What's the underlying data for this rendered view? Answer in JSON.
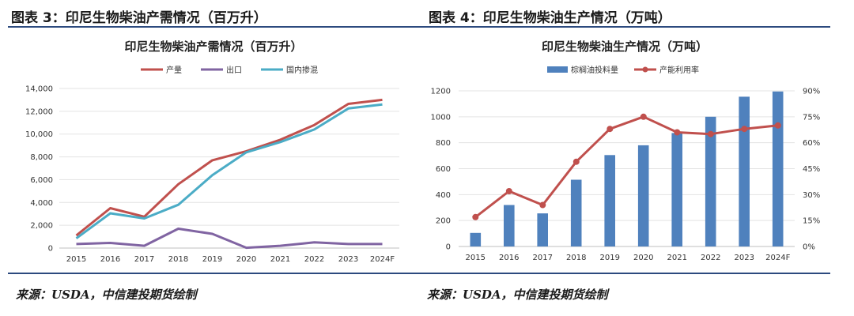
{
  "left": {
    "header": "图表 3：印尼生物柴油产需情况（百万升）",
    "source": "来源：USDA，中信建投期货绘制"
  },
  "right": {
    "header": "图表 4：印尼生物柴油生产情况（万吨）",
    "source": "来源：USDA，中信建投期货绘制"
  },
  "colors": {
    "rule": "#2c4a7e",
    "production": "#c0504d",
    "export": "#8064a2",
    "domestic": "#4bacc6",
    "bar": "#4f81bd",
    "rate": "#c0504d"
  },
  "chart_data": [
    {
      "type": "line",
      "title": "印尼生物柴油产需情况（百万升）",
      "categories": [
        "2015",
        "2016",
        "2017",
        "2018",
        "2019",
        "2020",
        "2021",
        "2022",
        "2023",
        "2024F"
      ],
      "ylim": [
        0,
        14000
      ],
      "yticks": [
        "0",
        "2,000",
        "4,000",
        "6,000",
        "8,000",
        "10,000",
        "12,000",
        "14,000"
      ],
      "grid": true,
      "legend": "top",
      "series": [
        {
          "name": "产量",
          "color": "#c0504d",
          "values": [
            1100,
            3500,
            2750,
            5600,
            7700,
            8500,
            9500,
            10800,
            12650,
            13000
          ]
        },
        {
          "name": "出口",
          "color": "#8064a2",
          "values": [
            350,
            450,
            200,
            1700,
            1250,
            30,
            200,
            500,
            350,
            350
          ]
        },
        {
          "name": "国内掺混",
          "color": "#4bacc6",
          "values": [
            850,
            3050,
            2600,
            3800,
            6400,
            8400,
            9300,
            10400,
            12250,
            12600
          ]
        }
      ]
    },
    {
      "type": "bar+line",
      "title": "印尼生物柴油生产情况（万吨）",
      "categories": [
        "2015",
        "2016",
        "2017",
        "2018",
        "2019",
        "2020",
        "2021",
        "2022",
        "2023",
        "2024F"
      ],
      "ylim": [
        0,
        1200
      ],
      "yticks": [
        "0",
        "200",
        "400",
        "600",
        "800",
        "1000",
        "1200"
      ],
      "y2lim": [
        0,
        90
      ],
      "y2ticks": [
        "0%",
        "15%",
        "30%",
        "45%",
        "60%",
        "75%",
        "90%"
      ],
      "grid": true,
      "legend": "top",
      "series": [
        {
          "name": "棕榈油投料量",
          "type": "bar",
          "axis": "left",
          "color": "#4f81bd",
          "values": [
            105,
            320,
            255,
            515,
            705,
            780,
            875,
            1000,
            1155,
            1195
          ]
        },
        {
          "name": "产能利用率",
          "type": "line",
          "axis": "right",
          "color": "#c0504d",
          "values": [
            17,
            32,
            24,
            49,
            68,
            75,
            66,
            65,
            68,
            70
          ]
        }
      ]
    }
  ]
}
